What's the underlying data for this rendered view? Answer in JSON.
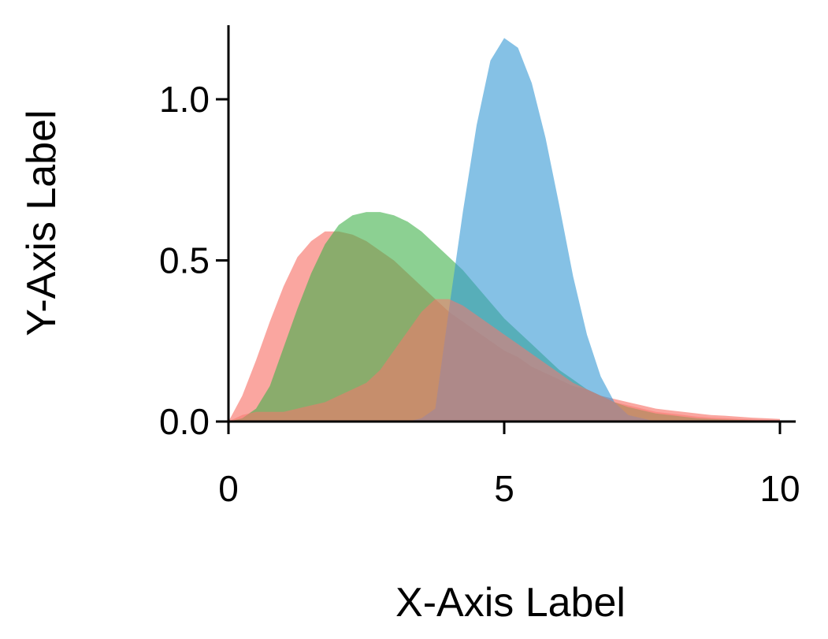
{
  "chart_data": {
    "type": "area",
    "title": "",
    "xlabel": "X-Axis Label",
    "ylabel": "Y-Axis Label",
    "xlim": [
      0,
      10
    ],
    "ylim": [
      0,
      1.2
    ],
    "xticks": [
      0,
      5,
      10
    ],
    "xtick_labels": [
      "0",
      "5",
      "10"
    ],
    "yticks": [
      0.0,
      0.5,
      1.0
    ],
    "ytick_labels": [
      "0.0",
      "0.5",
      "1.0"
    ],
    "grid": false,
    "legend": "none",
    "series": [
      {
        "color": "#f8766d",
        "opacity": 0.65,
        "x": [
          0,
          0.25,
          0.5,
          0.75,
          1,
          1.25,
          1.5,
          1.75,
          2,
          2.25,
          2.5,
          2.75,
          3,
          3.25,
          3.5,
          3.75,
          4,
          4.25,
          4.5,
          4.75,
          5,
          5.25,
          5.5,
          5.75,
          6,
          6.25,
          6.5,
          6.75,
          7,
          7.25,
          7.5,
          7.75,
          8,
          8.25,
          8.5,
          8.75,
          9,
          9.25,
          9.5,
          9.75,
          10
        ],
        "y": [
          0.0,
          0.08,
          0.19,
          0.31,
          0.42,
          0.51,
          0.56,
          0.59,
          0.59,
          0.58,
          0.56,
          0.53,
          0.5,
          0.46,
          0.42,
          0.38,
          0.34,
          0.31,
          0.28,
          0.25,
          0.22,
          0.2,
          0.17,
          0.15,
          0.13,
          0.11,
          0.1,
          0.08,
          0.07,
          0.06,
          0.05,
          0.04,
          0.035,
          0.03,
          0.025,
          0.02,
          0.018,
          0.015,
          0.012,
          0.01,
          0.008
        ]
      },
      {
        "color": "#3fb14a",
        "opacity": 0.6,
        "x": [
          0,
          0.25,
          0.5,
          0.75,
          1,
          1.25,
          1.5,
          1.75,
          2,
          2.25,
          2.5,
          2.75,
          3,
          3.25,
          3.5,
          3.75,
          4,
          4.25,
          4.5,
          4.75,
          5,
          5.25,
          5.5,
          5.75,
          6,
          6.25,
          6.5,
          6.75,
          7,
          7.25,
          7.5,
          7.75,
          8,
          8.25,
          8.5,
          8.75,
          9,
          9.25,
          9.5,
          9.75,
          10
        ],
        "y": [
          0.0,
          0.01,
          0.04,
          0.11,
          0.23,
          0.35,
          0.46,
          0.55,
          0.61,
          0.64,
          0.65,
          0.65,
          0.64,
          0.62,
          0.59,
          0.55,
          0.51,
          0.47,
          0.42,
          0.37,
          0.32,
          0.28,
          0.24,
          0.2,
          0.16,
          0.13,
          0.1,
          0.08,
          0.06,
          0.045,
          0.035,
          0.025,
          0.02,
          0.015,
          0.01,
          0.008,
          0.006,
          0.005,
          0.004,
          0.003,
          0.002
        ]
      },
      {
        "color": "#3498d3",
        "opacity": 0.6,
        "x": [
          0,
          0.25,
          0.5,
          0.75,
          1,
          1.25,
          1.5,
          1.75,
          2,
          2.25,
          2.5,
          2.75,
          3,
          3.25,
          3.5,
          3.75,
          4,
          4.25,
          4.5,
          4.75,
          5,
          5.25,
          5.5,
          5.75,
          6,
          6.25,
          6.5,
          6.75,
          7,
          7.25,
          7.5,
          7.75,
          8,
          8.25,
          8.5,
          8.75,
          9,
          9.25,
          9.5,
          9.75,
          10
        ],
        "y": [
          0.0,
          0.0,
          0.0,
          0.0,
          0.0,
          0.0,
          0.0,
          0.0,
          0.0,
          0.0,
          0.0,
          0.0,
          0.0,
          0.0,
          0.01,
          0.04,
          0.35,
          0.65,
          0.92,
          1.12,
          1.19,
          1.16,
          1.05,
          0.88,
          0.67,
          0.45,
          0.27,
          0.14,
          0.06,
          0.02,
          0.01,
          0.0,
          0.0,
          0.0,
          0.0,
          0.0,
          0.0,
          0.0,
          0.0,
          0.0,
          0.0
        ]
      },
      {
        "color": "#f8766d",
        "opacity": 0.55,
        "x": [
          0,
          0.25,
          0.5,
          0.75,
          1,
          1.25,
          1.5,
          1.75,
          2,
          2.25,
          2.5,
          2.75,
          3,
          3.25,
          3.5,
          3.75,
          4,
          4.25,
          4.5,
          4.75,
          5,
          5.25,
          5.5,
          5.75,
          6,
          6.25,
          6.5,
          6.75,
          7,
          7.25,
          7.5,
          7.75,
          8,
          8.25,
          8.5,
          8.75,
          9,
          9.25,
          9.5,
          9.75,
          10
        ],
        "y": [
          0.0,
          0.02,
          0.03,
          0.03,
          0.03,
          0.04,
          0.05,
          0.06,
          0.08,
          0.1,
          0.12,
          0.16,
          0.22,
          0.28,
          0.34,
          0.38,
          0.38,
          0.36,
          0.33,
          0.3,
          0.27,
          0.24,
          0.21,
          0.18,
          0.15,
          0.12,
          0.1,
          0.08,
          0.06,
          0.05,
          0.04,
          0.03,
          0.025,
          0.02,
          0.015,
          0.012,
          0.01,
          0.008,
          0.006,
          0.005,
          0.004
        ]
      }
    ]
  }
}
